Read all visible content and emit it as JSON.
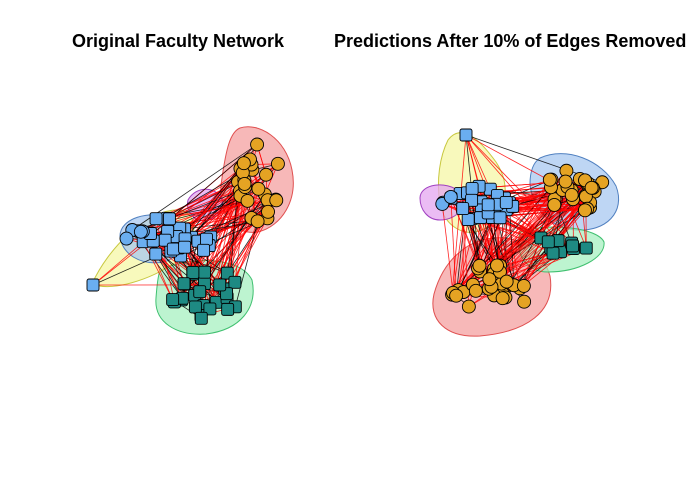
{
  "titles": {
    "left": "Original Faculty Network",
    "right": "Predictions After 10% of Edges Removed"
  },
  "colors": {
    "group_blue": "#6aaef0",
    "group_orange": "#e5a323",
    "group_teal": "#1e8a83",
    "edge_red": "#ff0000",
    "edge_black": "#000000",
    "hull_red": "#f4a0a0",
    "hull_green": "#a7f0c0",
    "hull_yellow": "#f6f7a5",
    "hull_blue": "#a8c8f0",
    "hull_purple": "#e4a6f0"
  }
}
